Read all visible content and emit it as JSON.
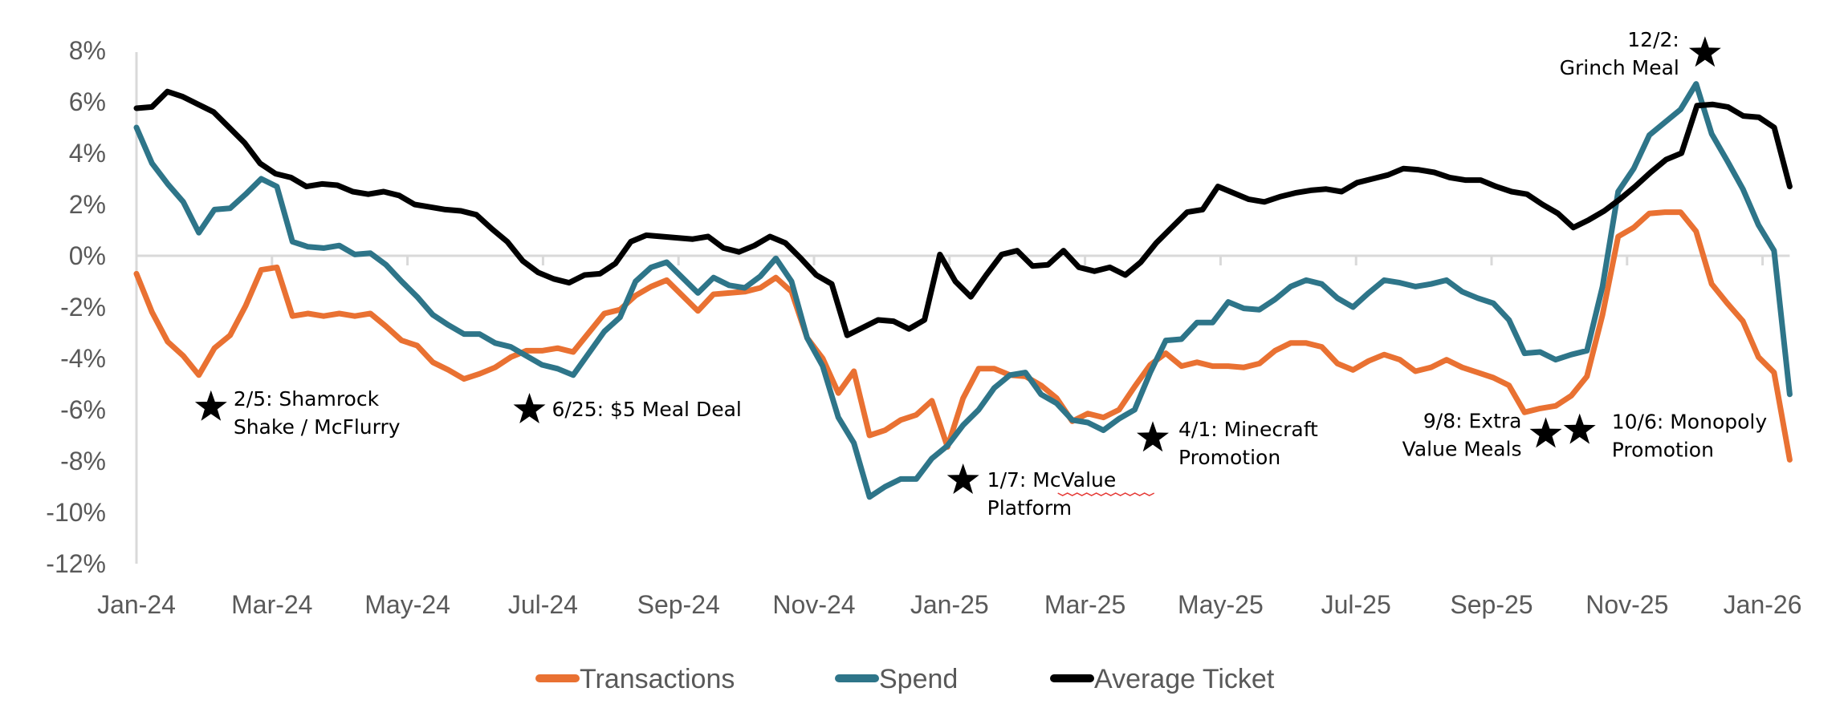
{
  "chart_data": {
    "type": "line",
    "title": "",
    "xlabel": "",
    "ylabel": "",
    "ylim": [
      -12,
      8
    ],
    "y_ticks": [
      "8%",
      "6%",
      "4%",
      "2%",
      "0%",
      "-2%",
      "-4%",
      "-6%",
      "-8%",
      "-10%",
      "-12%"
    ],
    "y_tick_values": [
      8,
      6,
      4,
      2,
      0,
      -2,
      -4,
      -6,
      -8,
      -10,
      -12
    ],
    "x_tick_labels": [
      "Jan-24",
      "Mar-24",
      "May-24",
      "Jul-24",
      "Sep-24",
      "Nov-24",
      "Jan-25",
      "Mar-25",
      "May-25",
      "Jul-25",
      "Sep-25",
      "Nov-25",
      "Jan-26"
    ],
    "x_tick_month_index": [
      0,
      2,
      4,
      6,
      8,
      10,
      12,
      14,
      16,
      18,
      20,
      22,
      24
    ],
    "x_unit": "weekly points, first at Jan-24 (month index 0), last near mid Jan-26",
    "x_range_months": [
      0,
      24.4
    ],
    "grid": "zero-line only",
    "legend_position": "bottom",
    "series": [
      {
        "name": "Transactions",
        "color": "#E97132",
        "values": [
          -0.7,
          -2.2,
          -3.35,
          -3.9,
          -4.65,
          -3.6,
          -3.1,
          -1.95,
          -0.55,
          -0.45,
          -2.35,
          -2.25,
          -2.35,
          -2.25,
          -2.35,
          -2.25,
          -2.75,
          -3.3,
          -3.5,
          -4.15,
          -4.45,
          -4.8,
          -4.6,
          -4.35,
          -3.95,
          -3.7,
          -3.7,
          -3.6,
          -3.75,
          -3.0,
          -2.25,
          -2.1,
          -1.55,
          -1.2,
          -0.95,
          -1.55,
          -2.15,
          -1.5,
          -1.45,
          -1.4,
          -1.25,
          -0.85,
          -1.4,
          -3.2,
          -4.0,
          -5.35,
          -4.5,
          -7.0,
          -6.8,
          -6.4,
          -6.2,
          -5.65,
          -7.45,
          -5.55,
          -4.4,
          -4.4,
          -4.65,
          -4.7,
          -5.05,
          -5.55,
          -6.45,
          -6.15,
          -6.3,
          -6.0,
          -5.1,
          -4.25,
          -3.8,
          -4.3,
          -4.15,
          -4.3,
          -4.3,
          -4.35,
          -4.2,
          -3.7,
          -3.4,
          -3.4,
          -3.55,
          -4.2,
          -4.45,
          -4.1,
          -3.85,
          -4.05,
          -4.5,
          -4.35,
          -4.05,
          -4.35,
          -4.55,
          -4.75,
          -5.05,
          -6.1,
          -5.95,
          -5.85,
          -5.45,
          -4.7,
          -2.3,
          0.75,
          1.1,
          1.65,
          1.7,
          1.7,
          0.95,
          -1.1,
          -1.85,
          -2.55,
          -3.95,
          -4.55,
          -7.95
        ]
      },
      {
        "name": "Spend",
        "color": "#2E7589",
        "values": [
          5.0,
          3.6,
          2.8,
          2.1,
          0.9,
          1.8,
          1.85,
          2.4,
          3.0,
          2.7,
          0.55,
          0.35,
          0.3,
          0.4,
          0.05,
          0.1,
          -0.35,
          -1.0,
          -1.6,
          -2.3,
          -2.7,
          -3.05,
          -3.05,
          -3.4,
          -3.55,
          -3.9,
          -4.25,
          -4.4,
          -4.65,
          -3.8,
          -2.95,
          -2.4,
          -1.0,
          -0.45,
          -0.25,
          -0.85,
          -1.45,
          -0.85,
          -1.15,
          -1.25,
          -0.8,
          -0.1,
          -1.0,
          -3.2,
          -4.3,
          -6.3,
          -7.3,
          -9.4,
          -9.0,
          -8.7,
          -8.7,
          -7.9,
          -7.4,
          -6.6,
          -6.0,
          -5.15,
          -4.65,
          -4.55,
          -5.4,
          -5.75,
          -6.4,
          -6.5,
          -6.8,
          -6.35,
          -6.0,
          -4.55,
          -3.3,
          -3.25,
          -2.6,
          -2.6,
          -1.8,
          -2.05,
          -2.1,
          -1.7,
          -1.2,
          -0.95,
          -1.1,
          -1.65,
          -2.0,
          -1.45,
          -0.95,
          -1.05,
          -1.2,
          -1.1,
          -0.95,
          -1.4,
          -1.65,
          -1.85,
          -2.5,
          -3.8,
          -3.75,
          -4.05,
          -3.85,
          -3.7,
          -1.2,
          2.5,
          3.4,
          4.7,
          5.2,
          5.7,
          6.7,
          4.75,
          3.7,
          2.6,
          1.2,
          0.2,
          -5.4
        ]
      },
      {
        "name": "Average Ticket",
        "color": "#000000",
        "values": [
          5.75,
          5.8,
          6.4,
          6.2,
          5.9,
          5.6,
          5.0,
          4.4,
          3.6,
          3.2,
          3.05,
          2.7,
          2.8,
          2.75,
          2.5,
          2.4,
          2.5,
          2.35,
          2.0,
          1.9,
          1.8,
          1.75,
          1.6,
          1.05,
          0.55,
          -0.2,
          -0.65,
          -0.9,
          -1.05,
          -0.75,
          -0.7,
          -0.3,
          0.55,
          0.8,
          0.75,
          0.7,
          0.65,
          0.75,
          0.3,
          0.15,
          0.4,
          0.75,
          0.5,
          -0.1,
          -0.75,
          -1.1,
          -3.1,
          -2.8,
          -2.5,
          -2.55,
          -2.85,
          -2.5,
          0.05,
          -1.0,
          -1.6,
          -0.75,
          0.05,
          0.2,
          -0.4,
          -0.35,
          0.2,
          -0.45,
          -0.6,
          -0.45,
          -0.75,
          -0.25,
          0.5,
          1.1,
          1.7,
          1.8,
          2.7,
          2.45,
          2.2,
          2.1,
          2.3,
          2.45,
          2.55,
          2.6,
          2.5,
          2.85,
          3.0,
          3.15,
          3.4,
          3.35,
          3.25,
          3.05,
          2.95,
          2.95,
          2.7,
          2.5,
          2.4,
          2.0,
          1.65,
          1.1,
          1.4,
          1.75,
          2.2,
          2.7,
          3.25,
          3.75,
          4.0,
          5.85,
          5.9,
          5.8,
          5.45,
          5.4,
          5.0,
          2.7
        ]
      }
    ],
    "annotations": [
      {
        "marker": "star",
        "month_pos": 1.1,
        "value": -5.9,
        "lines": [
          "2/5: Shamrock",
          "Shake / McFlurry"
        ]
      },
      {
        "marker": "star",
        "month_pos": 5.8,
        "value": -6.0,
        "lines": [
          "6/25: $5 Meal Deal"
        ]
      },
      {
        "marker": "star",
        "month_pos": 12.2,
        "value": -8.75,
        "lines": [
          "1/7: McValue",
          "Platform"
        ]
      },
      {
        "marker": "star",
        "month_pos": 15.0,
        "value": -7.1,
        "lines": [
          "4/1: Minecraft",
          "Promotion"
        ]
      },
      {
        "marker": "star",
        "month_pos": 20.8,
        "value": -6.95,
        "lines": [
          "9/8: Extra",
          "Value Meals"
        ]
      },
      {
        "marker": "star",
        "month_pos": 21.3,
        "value": -6.8,
        "lines": [
          "10/6:  Monopoly",
          "Promotion"
        ]
      },
      {
        "marker": "star",
        "month_pos": 23.15,
        "value": 7.9,
        "lines": [
          "12/2:",
          "Grinch Meal"
        ]
      }
    ]
  }
}
